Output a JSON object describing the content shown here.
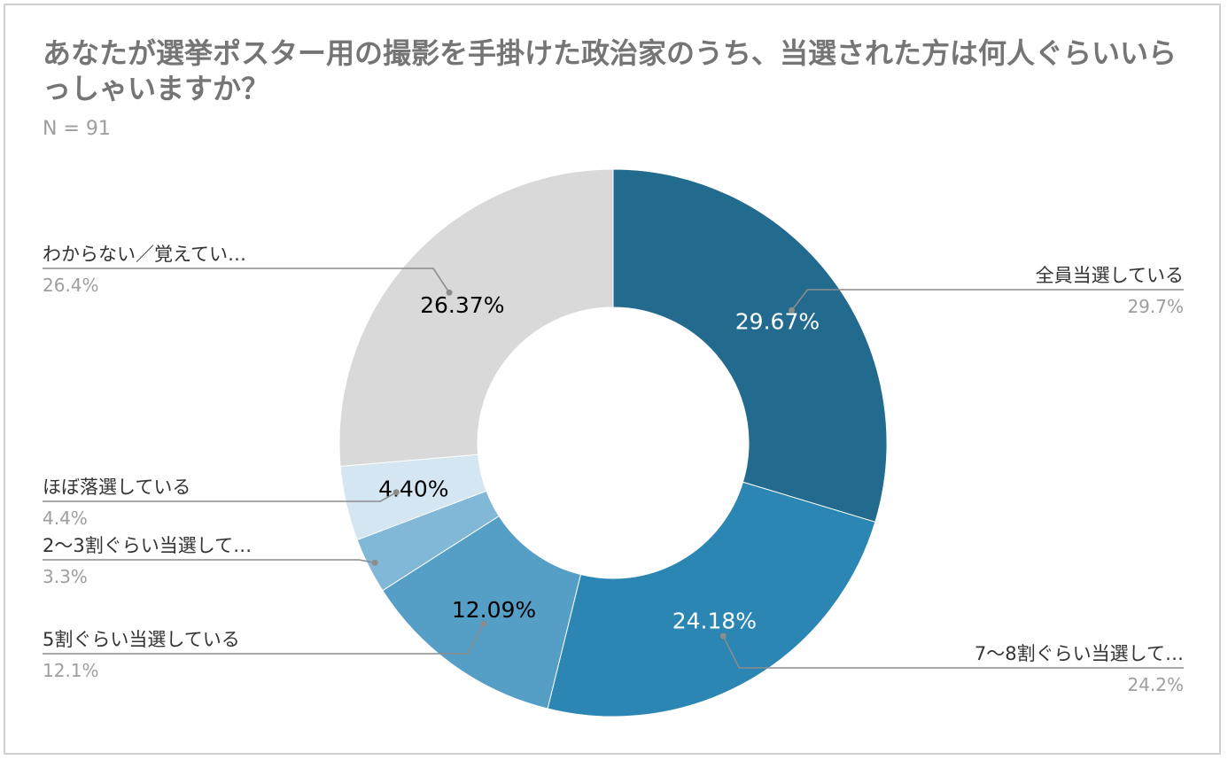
{
  "header": {
    "title": "あなたが選挙ポスター用の撮影を手掛けた政治家のうち、当選された方は何人ぐらいいらっしゃいますか？",
    "subtitle": "N = 91"
  },
  "chart_data": {
    "type": "pie",
    "title": "あなたが選挙ポスター用の撮影を手掛けた政治家のうち、当選された方は何人ぐらいいらっしゃいますか？",
    "subtitle": "N = 91",
    "donut": true,
    "start": "top",
    "direction": "clockwise",
    "categories": [
      "全員当選している",
      "7〜8割ぐらい当選して…",
      "5割ぐらい当選している",
      "2〜3割ぐらい当選して…",
      "ほぼ落選している",
      "わからない／覚えてい…"
    ],
    "values": [
      29.67,
      24.18,
      12.09,
      3.3,
      4.4,
      26.37
    ],
    "slice_labels": [
      "29.67%",
      "24.18%",
      "12.09%",
      "",
      "4.40%",
      "26.37%"
    ],
    "callout_values": [
      "29.7%",
      "24.2%",
      "12.1%",
      "3.3%",
      "4.4%",
      "26.4%"
    ],
    "colors": [
      "#236b8e",
      "#2b86b3",
      "#559ec6",
      "#82b8d7",
      "#d4e6f2",
      "#d9d9d9"
    ],
    "slice_label_colors": [
      "#ffffff",
      "#ffffff",
      "#000000",
      "#000000",
      "#000000",
      "#000000"
    ],
    "legend": "callouts"
  }
}
